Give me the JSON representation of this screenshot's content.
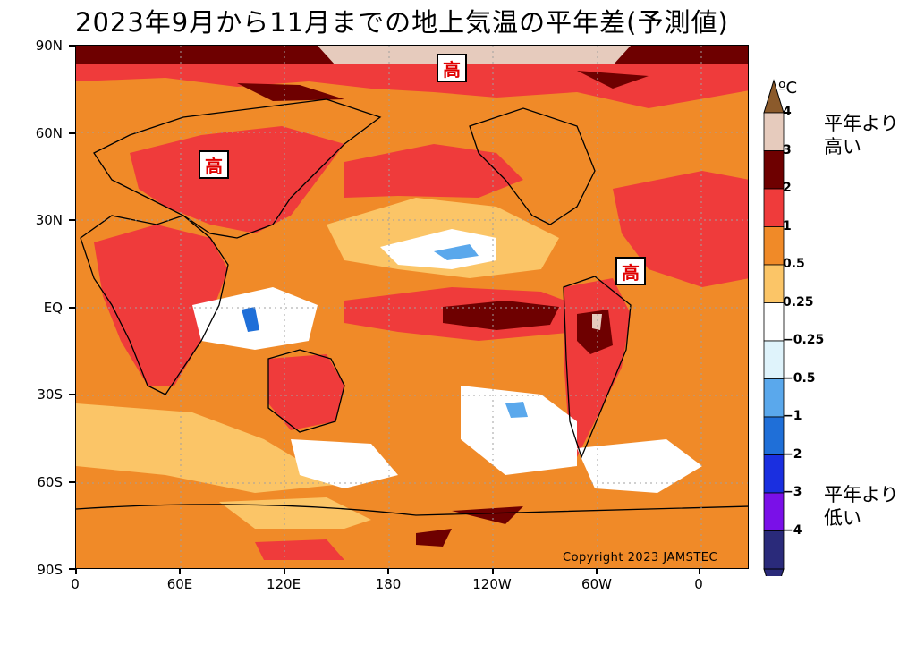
{
  "title": "2023年9月から11月までの地上気温の平年差(予測値)",
  "map": {
    "lat_labels": [
      "90N",
      "60N",
      "30N",
      "EQ",
      "30S",
      "60S",
      "90S"
    ],
    "lon_labels": [
      "0",
      "60E",
      "120E",
      "180",
      "120W",
      "60W",
      "0"
    ],
    "markers": [
      {
        "text": "高",
        "name": "arctic"
      },
      {
        "text": "高",
        "name": "central-asia"
      },
      {
        "text": "高",
        "name": "atlantic"
      }
    ],
    "copyright": "Copyright 2023 JAMSTEC"
  },
  "colorbar": {
    "unit": "ºC",
    "levels": [
      "4",
      "3",
      "2",
      "1",
      "0.5",
      "0.25",
      "−0.25",
      "−0.5",
      "−1",
      "−2",
      "−3",
      "−4"
    ],
    "colors": [
      "#e6cbbd",
      "#6e0000",
      "#ef3b3b",
      "#f08a28",
      "#fbc567",
      "#ffffff",
      "#dff3fb",
      "#5aa8ec",
      "#1f6fd8",
      "#1a2fe0",
      "#7a10e8",
      "#2a2a7a"
    ],
    "top_end_color": "#8b5a2b",
    "bottom_end_color": "#2a2a7a",
    "high_label_line1": "平年より",
    "high_label_line2": "高い",
    "low_label_line1": "平年より",
    "low_label_line2": "低い"
  }
}
